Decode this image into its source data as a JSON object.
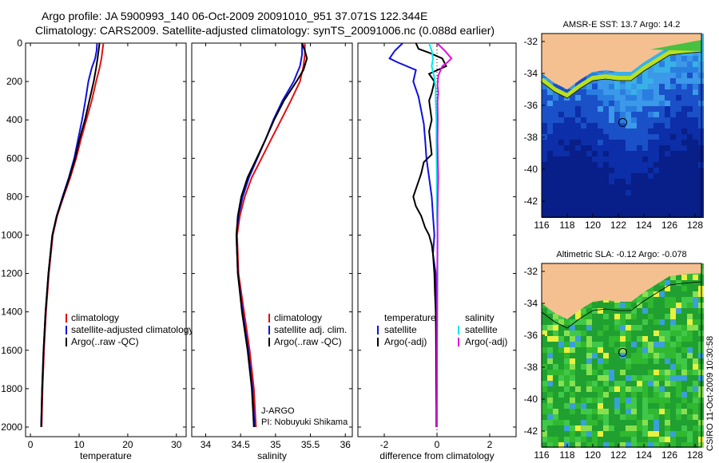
{
  "header": {
    "line1": "Argo profile: JA 5900993_140 06-Oct-2009 20091010_951 37.071S 122.344E",
    "line2": "Climatology: CARS2009. Satellite-adjusted climatology: synTS_20091006.nc (0.088d earlier)"
  },
  "side_label": "CSIRO 11-Oct-2009 10:30:58",
  "colors": {
    "climatology": "#e01010",
    "satellite": "#1010e0",
    "argo": "#000000",
    "sat_salinity": "#00e8e8",
    "argo_salinity": "#e010e0",
    "land": "#f4c090"
  },
  "chart_data": [
    {
      "type": "line",
      "id": "temperature",
      "xlabel": "temperature",
      "xlim": [
        -1,
        32
      ],
      "ylim": [
        2050,
        0
      ],
      "xticks": [
        0,
        10,
        20,
        30
      ],
      "yticks": [
        0,
        200,
        400,
        600,
        800,
        1000,
        1200,
        1400,
        1600,
        1800,
        2000
      ],
      "legend": [
        "climatology",
        "satellite-adjusted climatology",
        "Argo(..raw -QC)"
      ],
      "series": [
        {
          "name": "climatology",
          "color_key": "climatology",
          "points": [
            [
              15,
              0
            ],
            [
              14.8,
              40
            ],
            [
              14.6,
              80
            ],
            [
              14.2,
              130
            ],
            [
              13.5,
              200
            ],
            [
              12.6,
              300
            ],
            [
              11.5,
              400
            ],
            [
              10.4,
              500
            ],
            [
              9.4,
              600
            ],
            [
              8.2,
              700
            ],
            [
              6.8,
              800
            ],
            [
              5.5,
              900
            ],
            [
              4.6,
              1000
            ],
            [
              3.8,
              1200
            ],
            [
              3.2,
              1400
            ],
            [
              2.8,
              1600
            ],
            [
              2.5,
              1800
            ],
            [
              2.3,
              2000
            ]
          ]
        },
        {
          "name": "satellite-adjusted climatology",
          "color_key": "satellite",
          "points": [
            [
              13.7,
              0
            ],
            [
              13.6,
              40
            ],
            [
              13.3,
              80
            ],
            [
              12.6,
              130
            ],
            [
              11.9,
              200
            ],
            [
              11.3,
              300
            ],
            [
              10.6,
              400
            ],
            [
              9.8,
              500
            ],
            [
              9.0,
              600
            ],
            [
              7.9,
              700
            ],
            [
              6.6,
              800
            ],
            [
              5.4,
              900
            ],
            [
              4.5,
              1000
            ],
            [
              3.7,
              1200
            ],
            [
              3.1,
              1400
            ],
            [
              2.7,
              1600
            ],
            [
              2.4,
              1800
            ],
            [
              2.2,
              2000
            ]
          ]
        },
        {
          "name": "Argo(..raw -QC)",
          "color_key": "argo",
          "points": [
            [
              14.2,
              0
            ],
            [
              14.0,
              40
            ],
            [
              13.8,
              80
            ],
            [
              13.5,
              130
            ],
            [
              13.0,
              200
            ],
            [
              12.1,
              300
            ],
            [
              11.2,
              400
            ],
            [
              10.1,
              500
            ],
            [
              9.2,
              600
            ],
            [
              8.0,
              700
            ],
            [
              6.7,
              800
            ],
            [
              5.4,
              900
            ],
            [
              4.5,
              1000
            ],
            [
              3.7,
              1200
            ],
            [
              3.1,
              1400
            ],
            [
              2.7,
              1600
            ],
            [
              2.4,
              1800
            ],
            [
              2.2,
              2000
            ]
          ]
        }
      ]
    },
    {
      "type": "line",
      "id": "salinity",
      "xlabel": "salinity",
      "xlim": [
        33.8,
        36.1
      ],
      "ylim": [
        2050,
        0
      ],
      "xticks": [
        34,
        34.5,
        35,
        35.5,
        36
      ],
      "yticks": [
        0,
        200,
        400,
        600,
        800,
        1000,
        1200,
        1400,
        1600,
        1800,
        2000
      ],
      "legend": [
        "climatology",
        "satellite adj. clim.",
        "Argo(..raw -QC)"
      ],
      "annotations": [
        "J-ARGO",
        "PI: Nobuyuki Shikama"
      ],
      "series": [
        {
          "name": "climatology",
          "color_key": "climatology",
          "points": [
            [
              35.42,
              0
            ],
            [
              35.42,
              60
            ],
            [
              35.4,
              120
            ],
            [
              35.35,
              200
            ],
            [
              35.22,
              300
            ],
            [
              35.08,
              400
            ],
            [
              34.94,
              500
            ],
            [
              34.8,
              600
            ],
            [
              34.66,
              700
            ],
            [
              34.56,
              800
            ],
            [
              34.49,
              900
            ],
            [
              34.45,
              1000
            ],
            [
              34.47,
              1200
            ],
            [
              34.55,
              1400
            ],
            [
              34.63,
              1600
            ],
            [
              34.69,
              1800
            ],
            [
              34.72,
              2000
            ]
          ]
        },
        {
          "name": "satellite adj. clim.",
          "color_key": "satellite",
          "points": [
            [
              35.38,
              0
            ],
            [
              35.38,
              60
            ],
            [
              35.35,
              120
            ],
            [
              35.26,
              200
            ],
            [
              35.1,
              300
            ],
            [
              34.97,
              400
            ],
            [
              34.86,
              500
            ],
            [
              34.74,
              600
            ],
            [
              34.62,
              700
            ],
            [
              34.53,
              800
            ],
            [
              34.47,
              900
            ],
            [
              34.44,
              1000
            ],
            [
              34.46,
              1200
            ],
            [
              34.53,
              1400
            ],
            [
              34.61,
              1600
            ],
            [
              34.67,
              1800
            ],
            [
              34.7,
              2000
            ]
          ]
        },
        {
          "name": "Argo(..raw -QC)",
          "color_key": "argo",
          "points": [
            [
              35.38,
              0
            ],
            [
              35.42,
              40
            ],
            [
              35.45,
              80
            ],
            [
              35.4,
              140
            ],
            [
              35.3,
              200
            ],
            [
              35.12,
              300
            ],
            [
              34.98,
              400
            ],
            [
              34.86,
              500
            ],
            [
              34.73,
              600
            ],
            [
              34.6,
              700
            ],
            [
              34.51,
              800
            ],
            [
              34.46,
              900
            ],
            [
              34.44,
              1000
            ],
            [
              34.46,
              1200
            ],
            [
              34.52,
              1400
            ],
            [
              34.6,
              1600
            ],
            [
              34.66,
              1800
            ],
            [
              34.69,
              2000
            ]
          ]
        }
      ]
    },
    {
      "type": "line",
      "id": "difference",
      "xlabel": "difference from climatology",
      "xlim": [
        -3,
        3
      ],
      "ylim": [
        2050,
        0
      ],
      "xticks": [
        -2,
        0,
        2
      ],
      "yticks": [
        0,
        200,
        400,
        600,
        800,
        1000,
        1200,
        1400,
        1600,
        1800,
        2000
      ],
      "legend_left_title": "temperature",
      "legend_left": [
        "satellite",
        "Argo(-adj)"
      ],
      "legend_right_title": "salinity",
      "legend_right": [
        "satellite",
        "Argo(-adj)"
      ],
      "series": [
        {
          "name": "temperature satellite",
          "color_key": "satellite",
          "points": [
            [
              -1.3,
              0
            ],
            [
              -1.6,
              40
            ],
            [
              -1.8,
              80
            ],
            [
              -1.5,
              100
            ],
            [
              -0.8,
              140
            ],
            [
              -0.9,
              200
            ],
            [
              -0.7,
              280
            ],
            [
              -0.6,
              350
            ],
            [
              -0.5,
              420
            ],
            [
              -0.45,
              500
            ],
            [
              -0.4,
              600
            ],
            [
              -0.3,
              700
            ],
            [
              -0.2,
              800
            ],
            [
              -0.15,
              900
            ],
            [
              -0.1,
              1000
            ],
            [
              -0.15,
              1100
            ],
            [
              -0.05,
              1200
            ],
            [
              -0.03,
              1400
            ],
            [
              -0.02,
              1600
            ],
            [
              -0.02,
              1800
            ],
            [
              -0.01,
              2000
            ]
          ]
        },
        {
          "name": "temperature Argo(-adj)",
          "color_key": "argo",
          "points": [
            [
              -0.8,
              0
            ],
            [
              -0.7,
              30
            ],
            [
              -0.3,
              50
            ],
            [
              0.2,
              80
            ],
            [
              0.35,
              120
            ],
            [
              -0.3,
              160
            ],
            [
              -0.1,
              200
            ],
            [
              -0.2,
              260
            ],
            [
              -0.3,
              300
            ],
            [
              -0.25,
              350
            ],
            [
              -0.2,
              400
            ],
            [
              -0.3,
              460
            ],
            [
              -0.25,
              520
            ],
            [
              -0.2,
              580
            ],
            [
              -0.5,
              620
            ],
            [
              -0.6,
              680
            ],
            [
              -0.7,
              720
            ],
            [
              -0.8,
              760
            ],
            [
              -0.9,
              800
            ],
            [
              -0.8,
              850
            ],
            [
              -0.6,
              900
            ],
            [
              -0.45,
              960
            ],
            [
              -0.3,
              1000
            ],
            [
              -0.2,
              1050
            ],
            [
              -0.15,
              1100
            ],
            [
              -0.1,
              1200
            ],
            [
              -0.08,
              1300
            ],
            [
              -0.05,
              1400
            ],
            [
              -0.04,
              1500
            ],
            [
              -0.03,
              1700
            ],
            [
              -0.02,
              1900
            ],
            [
              -0.02,
              2000
            ]
          ]
        },
        {
          "name": "salinity satellite",
          "color_key": "sat_salinity",
          "points": [
            [
              -0.3,
              0
            ],
            [
              -0.2,
              40
            ],
            [
              -0.15,
              80
            ],
            [
              -0.2,
              120
            ],
            [
              -0.1,
              180
            ],
            [
              -0.05,
              240
            ],
            [
              -0.05,
              300
            ],
            [
              -0.02,
              400
            ],
            [
              -0.02,
              500
            ],
            [
              -0.01,
              700
            ],
            [
              0,
              900
            ],
            [
              0.02,
              1000
            ],
            [
              0.02,
              1200
            ],
            [
              0.01,
              1400
            ],
            [
              0.01,
              1600
            ],
            [
              0,
              1800
            ],
            [
              0,
              2000
            ]
          ]
        },
        {
          "name": "salinity Argo(-adj)",
          "color_key": "argo_salinity",
          "points": [
            [
              0,
              0
            ],
            [
              0.3,
              40
            ],
            [
              0.55,
              80
            ],
            [
              0.4,
              100
            ],
            [
              0.2,
              120
            ],
            [
              0.05,
              170
            ],
            [
              0.02,
              220
            ],
            [
              0.05,
              260
            ],
            [
              0.02,
              300
            ],
            [
              0.03,
              400
            ],
            [
              0.02,
              500
            ],
            [
              0.03,
              600
            ],
            [
              0.05,
              700
            ],
            [
              0.03,
              800
            ],
            [
              0.02,
              900
            ],
            [
              0.02,
              1000
            ],
            [
              0.01,
              1200
            ],
            [
              0.01,
              1400
            ],
            [
              0,
              1600
            ],
            [
              0,
              1800
            ],
            [
              0,
              2000
            ]
          ]
        }
      ]
    },
    {
      "type": "heatmap",
      "id": "sst_map",
      "title": "AMSR-E SST: 13.7 Argo: 14.2",
      "xlim": [
        116,
        128.5
      ],
      "ylim": [
        -43,
        -31.5
      ],
      "xticks": [
        116,
        118,
        120,
        122,
        124,
        126,
        128
      ],
      "yticks": [
        -32,
        -34,
        -36,
        -38,
        -40,
        -42
      ],
      "marker": {
        "lon": 122.344,
        "lat": -37.071
      }
    },
    {
      "type": "heatmap",
      "id": "sla_map",
      "title": "Altimetric SLA: -0.12 Argo: -0.078",
      "xlim": [
        116,
        128.5
      ],
      "ylim": [
        -43,
        -31.5
      ],
      "xticks": [
        116,
        118,
        120,
        122,
        124,
        126,
        128
      ],
      "yticks": [
        -32,
        -34,
        -36,
        -38,
        -40,
        -42
      ],
      "marker": {
        "lon": 122.344,
        "lat": -37.071
      }
    }
  ]
}
